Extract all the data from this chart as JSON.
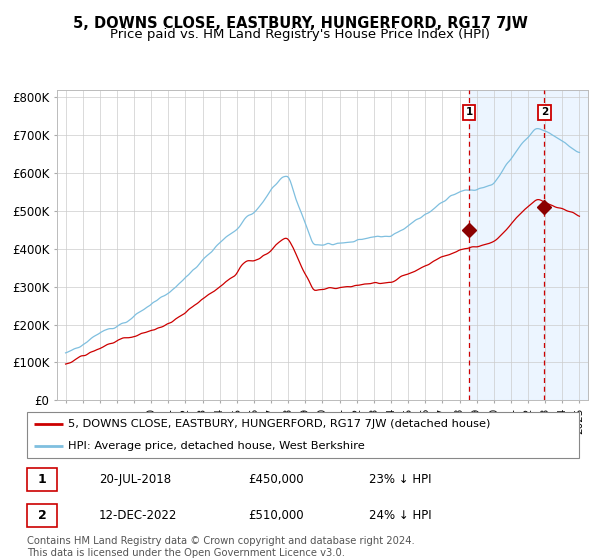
{
  "title": "5, DOWNS CLOSE, EASTBURY, HUNGERFORD, RG17 7JW",
  "subtitle": "Price paid vs. HM Land Registry's House Price Index (HPI)",
  "ylim": [
    0,
    820000
  ],
  "ytick_labels": [
    "£0",
    "£100K",
    "£200K",
    "£300K",
    "£400K",
    "£500K",
    "£600K",
    "£700K",
    "£800K"
  ],
  "ytick_values": [
    0,
    100000,
    200000,
    300000,
    400000,
    500000,
    600000,
    700000,
    800000
  ],
  "hpi_color": "#7fbfdf",
  "price_color": "#cc0000",
  "bg_shade_color": "#ddeeff",
  "sale1_date_label": "20-JUL-2018",
  "sale1_price": 450000,
  "sale1_pct": "23% ↓ HPI",
  "sale2_date_label": "12-DEC-2022",
  "sale2_price": 510000,
  "sale2_pct": "24% ↓ HPI",
  "legend_line1": "5, DOWNS CLOSE, EASTBURY, HUNGERFORD, RG17 7JW (detached house)",
  "legend_line2": "HPI: Average price, detached house, West Berkshire",
  "footnote": "Contains HM Land Registry data © Crown copyright and database right 2024.\nThis data is licensed under the Open Government Licence v3.0.",
  "sale1_year": 2018.55,
  "sale2_year": 2022.95,
  "xlim_left": 1994.5,
  "xlim_right": 2025.5
}
